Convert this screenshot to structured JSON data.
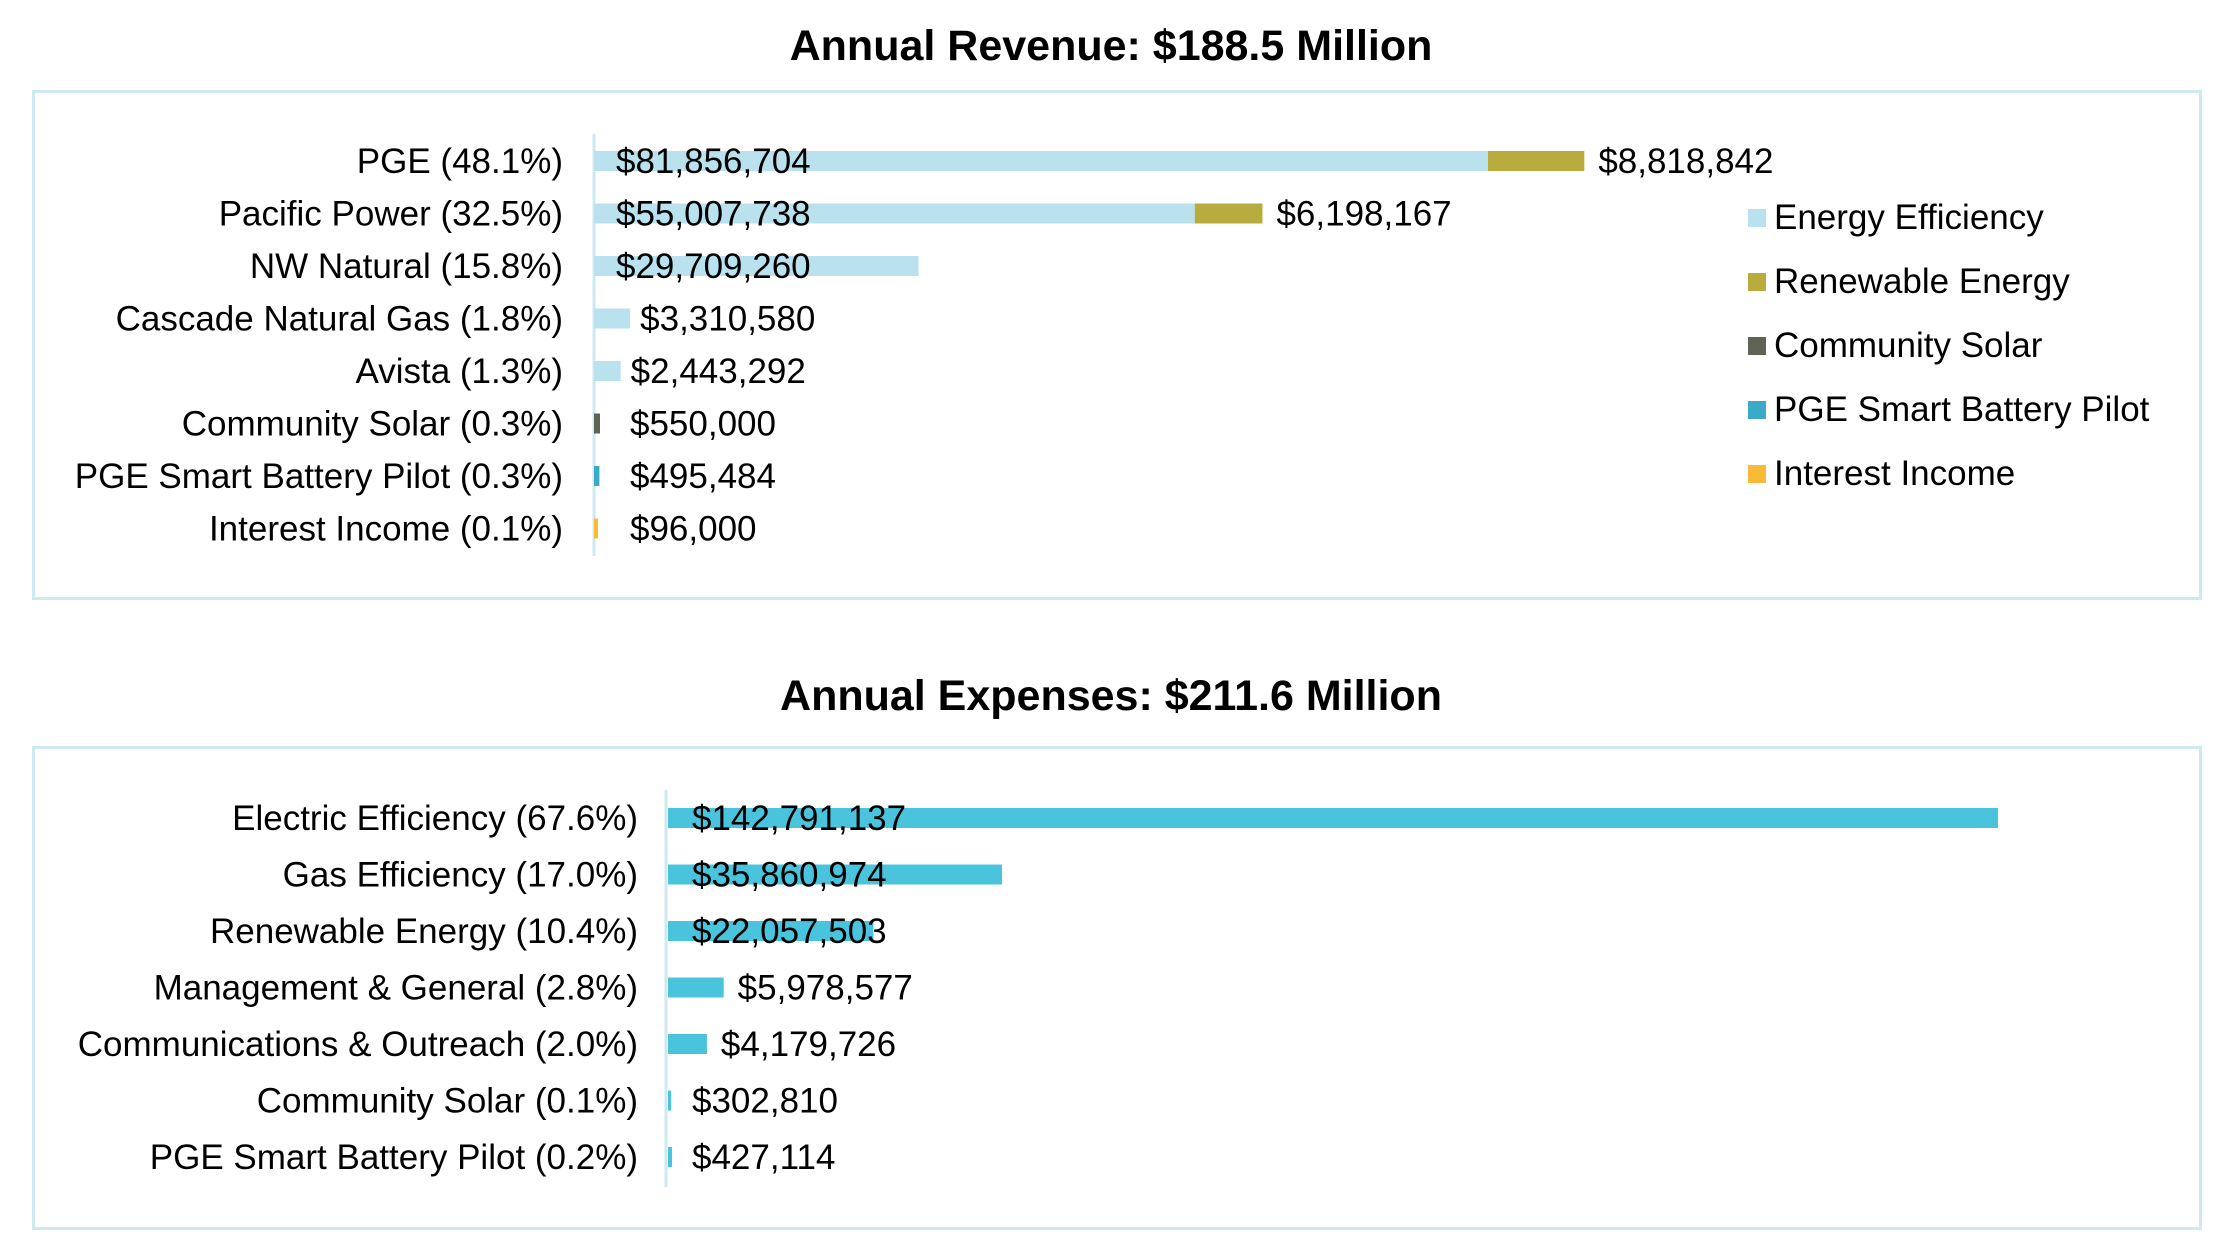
{
  "chart_data": [
    {
      "type": "bar",
      "orientation": "horizontal",
      "stacked": true,
      "title": "Annual Revenue: $188.5 Million",
      "categories": [
        "PGE (48.1%)",
        "Pacific Power (32.5%)",
        "NW Natural (15.8%)",
        "Cascade Natural Gas (1.8%)",
        "Avista (1.3%)",
        "Community Solar (0.3%)",
        "PGE Smart Battery Pilot (0.3%)",
        "Interest Income (0.1%)"
      ],
      "series": [
        {
          "name": "Energy Efficiency",
          "color": "#b9e2ee",
          "values": [
            81856704,
            55007738,
            29709260,
            3310580,
            2443292,
            0,
            0,
            0
          ],
          "labels": [
            "$81,856,704",
            "$55,007,738",
            "$29,709,260",
            "$3,310,580",
            "$2,443,292",
            "",
            "",
            ""
          ]
        },
        {
          "name": "Renewable Energy",
          "color": "#b7ac3d",
          "values": [
            8818842,
            6198167,
            0,
            0,
            0,
            0,
            0,
            0
          ],
          "labels": [
            "$8,818,842",
            "$6,198,167",
            "",
            "",
            "",
            "",
            "",
            ""
          ]
        },
        {
          "name": "Community Solar",
          "color": "#5f6356",
          "values": [
            0,
            0,
            0,
            0,
            0,
            550000,
            0,
            0
          ],
          "labels": [
            "",
            "",
            "",
            "",
            "",
            "$550,000",
            "",
            ""
          ]
        },
        {
          "name": "PGE Smart Battery Pilot",
          "color": "#3aaac8",
          "values": [
            0,
            0,
            0,
            0,
            0,
            0,
            495484,
            0
          ],
          "labels": [
            "",
            "",
            "",
            "",
            "",
            "",
            "$495,484",
            ""
          ]
        },
        {
          "name": "Interest Income",
          "color": "#f7bb37",
          "values": [
            0,
            0,
            0,
            0,
            0,
            0,
            0,
            96000
          ],
          "labels": [
            "",
            "",
            "",
            "",
            "",
            "",
            "",
            "$96,000"
          ]
        }
      ],
      "legend_position": "right",
      "grid": false
    },
    {
      "type": "bar",
      "orientation": "horizontal",
      "title": "Annual Expenses: $211.6 Million",
      "categories": [
        "Electric Efficiency (67.6%)",
        "Gas Efficiency (17.0%)",
        "Renewable Energy (10.4%)",
        "Management & General (2.8%)",
        "Communications & Outreach (2.0%)",
        "Community Solar (0.1%)",
        "PGE Smart Battery Pilot (0.2%)"
      ],
      "series": [
        {
          "color": "#4ac4dc",
          "values": [
            142791137,
            35860974,
            22057503,
            5978577,
            4179726,
            302810,
            427114
          ],
          "labels": [
            "$142,791,137",
            "$35,860,974",
            "$22,057,503",
            "$5,978,577",
            "$4,179,726",
            "$302,810",
            "$427,114"
          ]
        }
      ],
      "grid": false
    }
  ]
}
